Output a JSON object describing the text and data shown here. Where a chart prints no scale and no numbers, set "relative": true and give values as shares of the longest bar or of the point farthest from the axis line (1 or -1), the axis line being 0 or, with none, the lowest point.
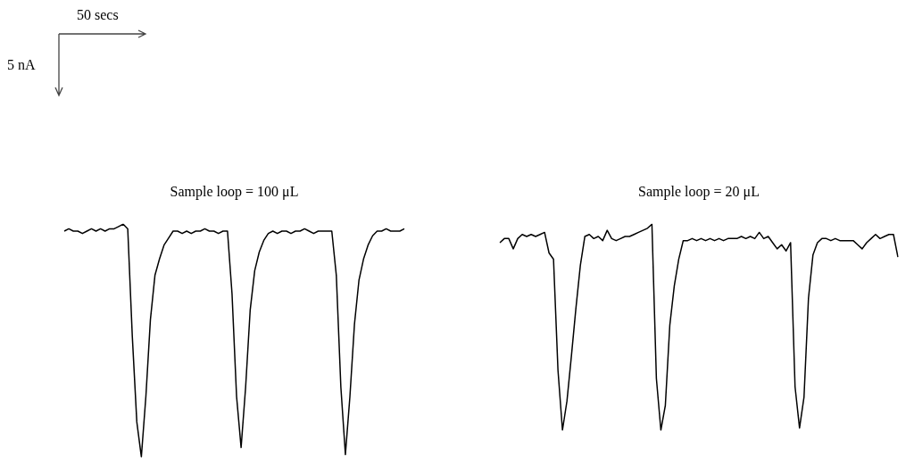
{
  "chart_data": [
    {
      "type": "line",
      "title": "Sample loop = 100 μL",
      "relative": true,
      "marker": "none",
      "annotations": [
        "50 secs",
        "5  nA"
      ],
      "categories": [
        null,
        null,
        null,
        null,
        null,
        null,
        null,
        null,
        null,
        null,
        null,
        null,
        null,
        null,
        null,
        null,
        null,
        null,
        null,
        null,
        null,
        null,
        null,
        null,
        null,
        null,
        null,
        null,
        null,
        null,
        null,
        null,
        null,
        null,
        null,
        null,
        null,
        null,
        null,
        null,
        null,
        null,
        null,
        null,
        null,
        null,
        null,
        null,
        null,
        null,
        null,
        null,
        null,
        null,
        null,
        null,
        null,
        null,
        null,
        null,
        null,
        null,
        null,
        null,
        null,
        null,
        null,
        null,
        null,
        null,
        null,
        null,
        null,
        null,
        null,
        null
      ],
      "series": [
        {
          "color": "#000000",
          "values": [
            0.97,
            0.98,
            0.97,
            0.97,
            0.96,
            0.97,
            0.98,
            0.97,
            0.98,
            0.97,
            0.98,
            0.98,
            0.99,
            1,
            0.98,
            0.52,
            0.15,
            0,
            0.26,
            0.59,
            0.78,
            0.85,
            0.91,
            0.94,
            0.97,
            0.97,
            0.96,
            0.97,
            0.96,
            0.97,
            0.97,
            0.98,
            0.97,
            0.97,
            0.96,
            0.97,
            0.97,
            0.7,
            0.26,
            0.04,
            0.3,
            0.63,
            0.8,
            0.88,
            0.93,
            0.96,
            0.97,
            0.96,
            0.97,
            0.97,
            0.96,
            0.97,
            0.97,
            0.98,
            0.97,
            0.96,
            0.97,
            0.97,
            0.97,
            0.97,
            0.78,
            0.3,
            0.01,
            0.26,
            0.57,
            0.76,
            0.85,
            0.91,
            0.95,
            0.97,
            0.97,
            0.98,
            0.97,
            0.97,
            0.97,
            0.98
          ]
        }
      ]
    },
    {
      "type": "line",
      "title": "Sample loop = 20 μL",
      "relative": true,
      "marker": "none",
      "categories": [
        null,
        null,
        null,
        null,
        null,
        null,
        null,
        null,
        null,
        null,
        null,
        null,
        null,
        null,
        null,
        null,
        null,
        null,
        null,
        null,
        null,
        null,
        null,
        null,
        null,
        null,
        null,
        null,
        null,
        null,
        null,
        null,
        null,
        null,
        null,
        null,
        null,
        null,
        null,
        null,
        null,
        null,
        null,
        null,
        null,
        null,
        null,
        null,
        null,
        null,
        null,
        null,
        null,
        null,
        null,
        null,
        null,
        null,
        null,
        null,
        null,
        null,
        null,
        null,
        null,
        null,
        null,
        null,
        null,
        null,
        null,
        null,
        null,
        null,
        null,
        null,
        null,
        null,
        null,
        null,
        null,
        null,
        null,
        null,
        null,
        null,
        null,
        null,
        null,
        null
      ],
      "series": [
        {
          "color": "#000000",
          "values": [
            0.91,
            0.93,
            0.93,
            0.88,
            0.93,
            0.95,
            0.94,
            0.95,
            0.94,
            0.95,
            0.96,
            0.86,
            0.83,
            0.29,
            0,
            0.14,
            0.36,
            0.59,
            0.8,
            0.94,
            0.95,
            0.93,
            0.94,
            0.92,
            0.97,
            0.93,
            0.92,
            0.93,
            0.94,
            0.94,
            0.95,
            0.96,
            0.97,
            0.98,
            1,
            0.25,
            0,
            0.12,
            0.51,
            0.7,
            0.83,
            0.92,
            0.92,
            0.93,
            0.92,
            0.93,
            0.92,
            0.93,
            0.92,
            0.93,
            0.92,
            0.93,
            0.93,
            0.93,
            0.94,
            0.93,
            0.94,
            0.93,
            0.96,
            0.93,
            0.94,
            0.91,
            0.88,
            0.9,
            0.87,
            0.91,
            0.21,
            0.01,
            0.16,
            0.64,
            0.85,
            0.91,
            0.93,
            0.93,
            0.92,
            0.93,
            0.92,
            0.92,
            0.92,
            0.92,
            0.9,
            0.88,
            0.91,
            0.93,
            0.95,
            0.93,
            0.94,
            0.95,
            0.95,
            0.84
          ]
        }
      ]
    }
  ]
}
